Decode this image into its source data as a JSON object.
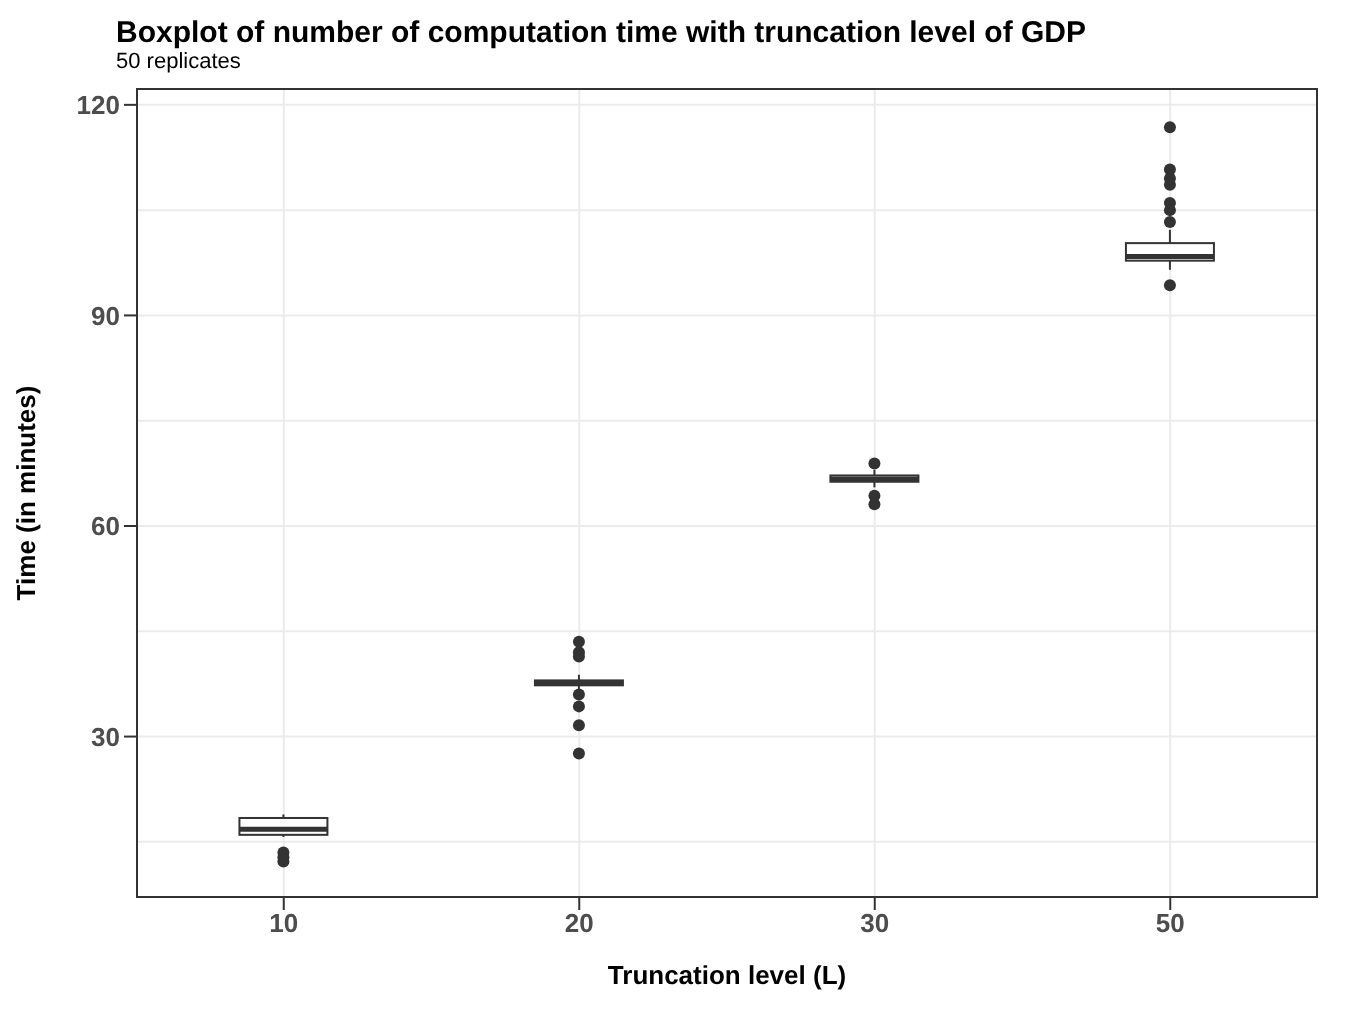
{
  "chart_data": {
    "type": "box",
    "title": "Boxplot of number of computation time with truncation level of GDP",
    "subtitle": "50 replicates",
    "xlabel": "Truncation level (L)",
    "ylabel": "Time (in minutes)",
    "categories": [
      "10",
      "20",
      "30",
      "50"
    ],
    "boxes": [
      {
        "low": 15.7,
        "q1": 16,
        "median": 16.8,
        "q3": 18.4,
        "high": 18.9,
        "outliers": [
          13.5,
          12.8,
          12.2
        ]
      },
      {
        "low": 36.6,
        "q1": 37.3,
        "median": 37.6,
        "q3": 38,
        "high": 38.8,
        "outliers": [
          43.5,
          42,
          41.4,
          36,
          34.3,
          31.6,
          27.6
        ]
      },
      {
        "low": 65.5,
        "q1": 66.3,
        "median": 66.7,
        "q3": 67.2,
        "high": 68,
        "outliers": [
          68.9,
          64.3,
          63.1
        ]
      },
      {
        "low": 96.5,
        "q1": 97.8,
        "median": 98.4,
        "q3": 100.3,
        "high": 102.2,
        "outliers": [
          116.8,
          110.8,
          109.5,
          108.6,
          106,
          105,
          103.3,
          94.3
        ]
      }
    ],
    "ylim": [
      7,
      122.4
    ],
    "yticks": [
      30,
      60,
      90,
      120
    ],
    "grid": true
  }
}
